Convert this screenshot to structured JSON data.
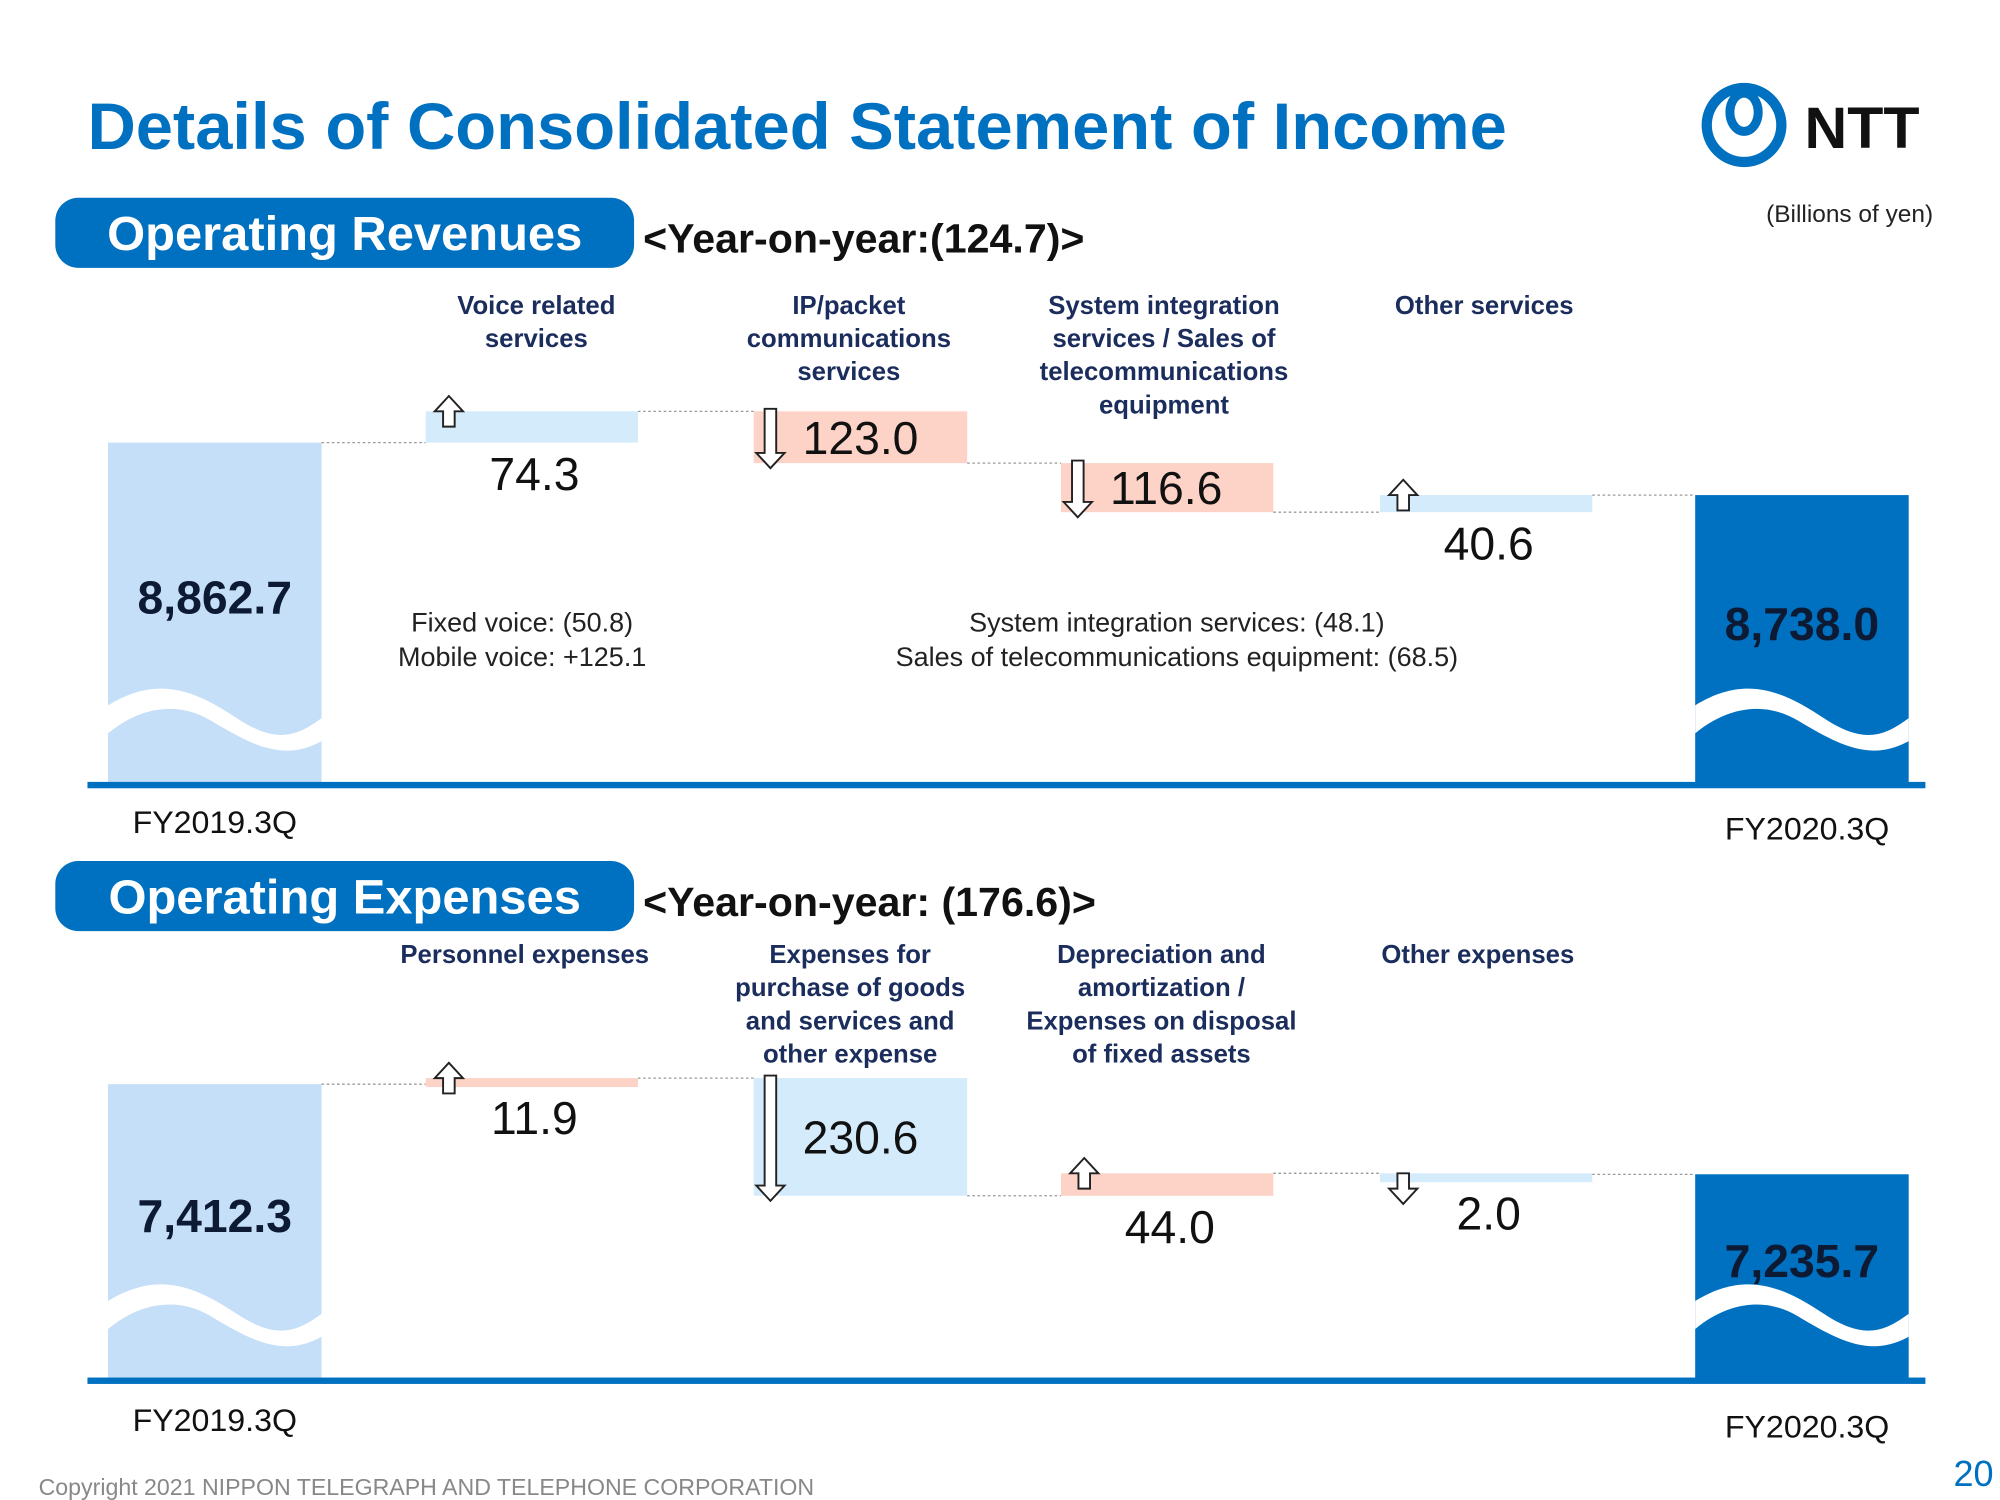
{
  "page": {
    "title": "Details of Consolidated Statement of Income",
    "logo_text": "NTT",
    "units": "(Billions of yen)",
    "copyright": "Copyright 2021 NIPPON TELEGRAPH AND TELEPHONE CORPORATION",
    "page_number": "20"
  },
  "chart_data": [
    {
      "type": "waterfall",
      "title": "Operating Revenues",
      "subtitle": "<Year-on-year:(124.7)>",
      "categories": [
        "FY2019.3Q",
        "Voice related\nservices",
        "IP/packet\ncommunications\nservices",
        "System integration\nservices / Sales of\ntelecommunications\nequipment",
        "Other services",
        "FY2020.3Q"
      ],
      "values": [
        8862.7,
        74.3,
        -123.0,
        -116.6,
        40.6,
        8738.0
      ],
      "value_labels": [
        "8,862.7",
        "74.3",
        "123.0",
        "116.6",
        "40.6",
        "8,738.0"
      ],
      "colors": {
        "start": "#c5dff8",
        "end": "#0070c0",
        "up": "#d3ebfb",
        "down": "#fcd3c6"
      },
      "annotations": [
        [
          "Fixed voice: (50.8)",
          "Mobile voice: +125.1"
        ],
        [
          "System integration services: (48.1)",
          "Sales of telecommunications equipment: (68.5)"
        ]
      ]
    },
    {
      "type": "waterfall",
      "title": "Operating Expenses",
      "subtitle": "<Year-on-year: (176.6)>",
      "categories": [
        "FY2019.3Q",
        "Personnel expenses",
        "Expenses for\npurchase of goods\nand services and\nother expense",
        "Depreciation and\namortization /\nExpenses on disposal\nof fixed assets",
        "Other expenses",
        "FY2020.3Q"
      ],
      "values": [
        7412.3,
        11.9,
        -230.6,
        44.0,
        -2.0,
        7235.7
      ],
      "value_labels": [
        "7,412.3",
        "11.9",
        "230.6",
        "44.0",
        "2.0",
        "7,235.7"
      ],
      "colors": {
        "start": "#c5dff8",
        "end": "#0070c0",
        "up": "#fcd3c6",
        "down": "#d3ebfb"
      }
    }
  ]
}
